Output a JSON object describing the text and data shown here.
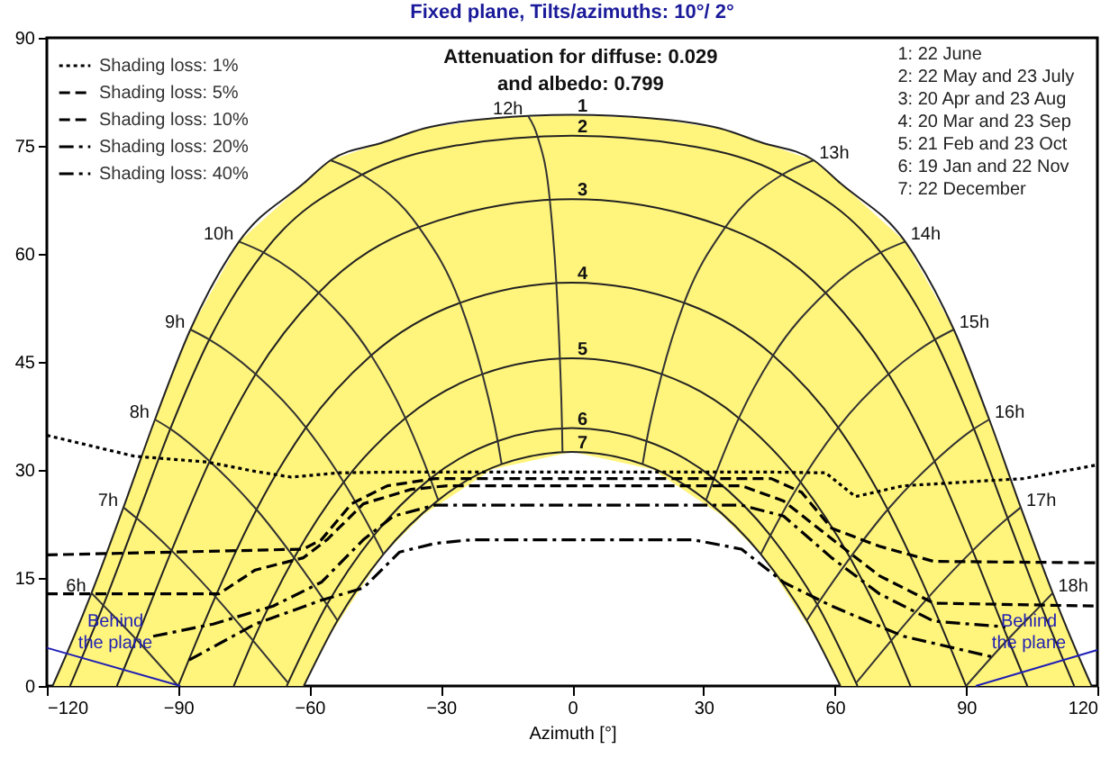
{
  "chart_data": {
    "type": "line",
    "title": "Fixed plane, Tilts/azimuths: 10°/ 2°",
    "xlabel": "Azimuth [°]",
    "xlim": [
      -120,
      120
    ],
    "xticks": [
      -120,
      -90,
      -60,
      -30,
      0,
      30,
      60,
      90,
      120
    ],
    "ylim": [
      0,
      90
    ],
    "yticks": [
      0,
      15,
      30,
      45,
      60,
      75,
      90
    ],
    "legend": "top left",
    "annotations": [
      "Attenuation for diffuse: 0.029",
      "and albedo: 0.799",
      "1: 22 June",
      "2: 22 May and 23 July",
      "3: 20 Apr and 23 Aug",
      "4: 20 Mar and 23 Sep",
      "5: 21 Feb and 23 Oct",
      "6: 19 Jan and 22 Nov",
      "7: 22 December",
      "Behind the plane",
      "Behind the plane"
    ],
    "series": [
      {
        "name": "1",
        "color": "#222222",
        "x": [
          -118.7,
          -117.6,
          -109.8,
          -102.5,
          -95.3,
          -87.2,
          -76.1,
          -61.3,
          -55.2,
          -43.1,
          -33.9,
          -18.3,
          0,
          18.3,
          33.9,
          43.1,
          55.2,
          61.3,
          76.1,
          87.2,
          95.3,
          102.5,
          109.8,
          117.6,
          118.7
        ],
        "values": [
          0,
          1.5,
          12.9,
          24.8,
          37,
          49.5,
          61.7,
          69.8,
          73,
          75.5,
          77.4,
          78.8,
          79.3,
          78.8,
          77.4,
          75.5,
          73,
          69.8,
          61.7,
          49.5,
          37,
          24.8,
          12.9,
          1.5,
          0
        ],
        "upper": [
          0,
          1.5,
          12.9,
          24.8,
          37,
          49.5,
          61.7,
          69.8,
          73,
          75.5,
          77.4,
          78.8,
          79.3,
          78.8,
          77.4,
          75.5,
          73,
          69.8,
          61.7,
          49.5,
          37,
          24.8,
          12.9,
          1.5,
          0
        ],
        "lower": [
          0,
          0,
          0,
          0,
          0,
          0,
          0,
          0,
          7.2,
          18.3,
          23.8,
          30.1,
          32.5,
          30.1,
          23.8,
          18.3,
          7.2,
          0,
          0,
          0,
          0,
          0,
          0,
          0,
          0
        ]
      },
      {
        "name": "2",
        "color": "#222222",
        "x": [
          -114.7,
          -107.1,
          -99.5,
          -91.8,
          -82.9,
          -70.5,
          -48,
          -27.8,
          0,
          27.8,
          48,
          70.5,
          82.9,
          91.8,
          99.5,
          107.1,
          114.7
        ],
        "values": [
          0,
          11.2,
          23.3,
          35.7,
          48.1,
          60.2,
          71,
          74.9,
          76.4,
          74.9,
          71,
          60.2,
          48.1,
          35.7,
          23.3,
          11.2,
          0
        ]
      },
      {
        "name": "3",
        "color": "#222222",
        "x": [
          -104,
          -99.6,
          -91.5,
          -82.8,
          -72.3,
          -57.9,
          -35,
          0,
          35,
          57.9,
          72.3,
          82.8,
          91.5,
          99.6,
          104
        ],
        "values": [
          0,
          6.5,
          18.8,
          31.2,
          43.3,
          54.6,
          63.7,
          67.6,
          63.7,
          54.6,
          43.3,
          31.2,
          18.8,
          6.5,
          0
        ]
      },
      {
        "name": "4",
        "color": "#222222",
        "x": [
          -90,
          -81.5,
          -72.1,
          -60.8,
          -45.9,
          -25.6,
          0,
          25.6,
          45.9,
          60.8,
          72.1,
          81.5,
          90
        ],
        "values": [
          0,
          12.4,
          24.5,
          35.9,
          45.9,
          53.2,
          56,
          53.2,
          45.9,
          35.9,
          24.5,
          12.4,
          0
        ]
      },
      {
        "name": "5",
        "color": "#222222",
        "x": [
          -77.3,
          -72.9,
          -63.5,
          -52.2,
          -38.1,
          -20.5,
          0,
          20.5,
          38.1,
          52.2,
          63.5,
          72.9,
          77.3
        ],
        "values": [
          0,
          6.3,
          17.8,
          28.3,
          37.2,
          43.3,
          45.5,
          43.3,
          37.2,
          28.3,
          17.8,
          6.3,
          0
        ]
      },
      {
        "name": "6",
        "color": "#222222",
        "x": [
          -65.2,
          -56,
          -45.3,
          -32.4,
          -17,
          0,
          17,
          32.4,
          45.3,
          56,
          65.2
        ],
        "values": [
          0,
          11.3,
          20.9,
          28.8,
          34,
          35.8,
          34,
          28.8,
          20.9,
          11.3,
          0
        ]
      },
      {
        "name": "7",
        "color": "#222222",
        "x": [
          -61.3,
          -53.6,
          -43.1,
          -30.6,
          -16.1,
          0,
          16.1,
          30.6,
          43.1,
          53.6,
          61.3
        ],
        "values": [
          0,
          9.1,
          18.3,
          25.8,
          30.8,
          32.5,
          30.8,
          25.8,
          18.3,
          9.1,
          0
        ]
      },
      {
        "name": "6h",
        "color": "#333333",
        "x": [
          -109.8,
          -107.1,
          -99.6,
          -90
        ],
        "values": [
          12.9,
          11.2,
          6.5,
          0
        ]
      },
      {
        "name": "7h",
        "color": "#333333",
        "x": [
          -102.5,
          -99.5,
          -91.5,
          -81.5,
          -72.9,
          -65
        ],
        "values": [
          24.8,
          23.3,
          18.8,
          12.4,
          6.3,
          0.5
        ]
      },
      {
        "name": "8h",
        "color": "#333333",
        "x": [
          -95.3,
          -91.8,
          -82.8,
          -72.1,
          -63.5,
          -56,
          -53.6
        ],
        "values": [
          37,
          35.7,
          31.2,
          24.5,
          17.8,
          11.3,
          9.1
        ]
      },
      {
        "name": "9h",
        "color": "#333333",
        "x": [
          -87.2,
          -82.9,
          -72.3,
          -60.8,
          -52.2,
          -45.3,
          -43.1
        ],
        "values": [
          49.5,
          48.1,
          43.3,
          35.9,
          28.3,
          20.9,
          18.3
        ]
      },
      {
        "name": "10h",
        "color": "#333333",
        "x": [
          -76.1,
          -70.5,
          -57.9,
          -45.9,
          -38.1,
          -32.4,
          -30.6
        ],
        "values": [
          61.7,
          60.2,
          54.6,
          45.9,
          37.2,
          28.8,
          25.8
        ]
      },
      {
        "color": "#333333",
        "x": [
          -55.2,
          -48,
          -35,
          -25.6,
          -20.5,
          -17,
          -16.1
        ],
        "values": [
          73,
          71,
          63.7,
          53.2,
          43.3,
          34,
          30.8
        ]
      },
      {
        "name": "12h",
        "color": "#333333",
        "x": [
          -10,
          -7.9,
          -5.1,
          -3.6,
          -2.8,
          -2.3,
          -2.2
        ],
        "values": [
          79.1,
          76.3,
          67.5,
          55.9,
          45.5,
          35.8,
          32.5
        ]
      },
      {
        "name": "13h",
        "color": "#333333",
        "x": [
          55.2,
          48,
          35,
          25.6,
          20.5,
          17,
          16.1
        ],
        "values": [
          73,
          71,
          63.7,
          53.2,
          43.3,
          34,
          30.8
        ]
      },
      {
        "name": "14h",
        "color": "#333333",
        "x": [
          76.1,
          70.5,
          57.9,
          45.9,
          38.1,
          32.4,
          30.6
        ],
        "values": [
          61.7,
          60.2,
          54.6,
          45.9,
          37.2,
          28.8,
          25.8
        ]
      },
      {
        "name": "15h",
        "color": "#333333",
        "x": [
          87.2,
          82.9,
          72.3,
          60.8,
          52.2,
          45.3,
          43.1
        ],
        "values": [
          49.5,
          48.1,
          43.3,
          35.9,
          28.3,
          20.9,
          18.3
        ]
      },
      {
        "name": "16h",
        "color": "#333333",
        "x": [
          95.3,
          91.8,
          82.8,
          72.1,
          63.5,
          56,
          53.6
        ],
        "values": [
          37,
          35.7,
          31.2,
          24.5,
          17.8,
          11.3,
          9.1
        ]
      },
      {
        "name": "17h",
        "color": "#333333",
        "x": [
          102.5,
          99.5,
          91.5,
          81.5,
          72.9,
          65
        ],
        "values": [
          24.8,
          23.3,
          18.8,
          12.4,
          6.3,
          0.5
        ]
      },
      {
        "name": "18h",
        "color": "#333333",
        "x": [
          109.8,
          107.1,
          99.6,
          90
        ],
        "values": [
          12.9,
          11.2,
          6.5,
          0
        ]
      },
      {
        "name": "Shading loss: 1%",
        "color": "#000000",
        "line_style": "dotted",
        "x": [
          -120,
          -100,
          -83.4,
          -72.4,
          -64.2,
          -53.2,
          -40,
          0,
          45,
          57.9,
          64.7,
          75.7,
          103.1,
          120
        ],
        "values": [
          34.8,
          31.9,
          31.1,
          29.8,
          29,
          29.6,
          29.7,
          29.7,
          29.7,
          29.6,
          26.3,
          27.8,
          28.8,
          30.7
        ]
      },
      {
        "name": "Shading loss: 5%",
        "color": "#000000",
        "line_style": "dashed",
        "x": [
          -120,
          -61.4,
          -57.3,
          -50.4,
          -42.2,
          -31.3,
          0,
          45.5,
          52.4,
          59.3,
          70.2,
          82.6,
          120
        ],
        "values": [
          18.2,
          19,
          20.3,
          25.3,
          27.8,
          28.8,
          28.8,
          28.8,
          26.9,
          21.9,
          19.4,
          17.3,
          17.1
        ]
      },
      {
        "name": "Shading loss: 10%",
        "color": "#000000",
        "line_style": "dashed",
        "x": [
          -120,
          -80.7,
          -72.4,
          -61.4,
          -56,
          -47.7,
          -36.8,
          -28.5,
          0,
          38.7,
          48.3,
          57.9,
          70.2,
          82.6,
          120
        ],
        "values": [
          12.8,
          12.8,
          16.1,
          17.8,
          20.3,
          25.3,
          27.3,
          27.8,
          27.8,
          27.8,
          25.7,
          21.1,
          15.3,
          11.5,
          11.1
        ]
      },
      {
        "name": "Shading loss: 20%",
        "color": "#000000",
        "line_style": "dashdot",
        "x": [
          -95.7,
          -82,
          -68.3,
          -57.3,
          -47.7,
          -40.8,
          -31.3,
          0,
          38.7,
          48.3,
          59.3,
          70.2,
          82.6,
          99
        ],
        "values": [
          6.9,
          8.6,
          11.1,
          14.4,
          20.3,
          23.6,
          25.1,
          25.1,
          25.1,
          23.6,
          17.8,
          12.8,
          9,
          8.2
        ]
      },
      {
        "name": "Shading loss: 40%",
        "color": "#000000",
        "line_style": "dashdot",
        "x": [
          -87.5,
          -72.4,
          -57.3,
          -47.7,
          -39.4,
          -31.3,
          -23,
          0,
          27.7,
          38.7,
          48.3,
          59.3,
          75.7,
          96.3
        ],
        "values": [
          3.6,
          8.6,
          11.9,
          13.6,
          18.6,
          19.8,
          20.3,
          20.3,
          20.3,
          19,
          14.4,
          11.1,
          6.9,
          4
        ]
      },
      {
        "color": "#1f1fb4",
        "x": [
          -120,
          -89.5
        ],
        "values": [
          5.3,
          0
        ]
      },
      {
        "color": "#1f1fb4",
        "x": [
          92.2,
          120
        ],
        "values": [
          0,
          5
        ]
      }
    ]
  }
}
